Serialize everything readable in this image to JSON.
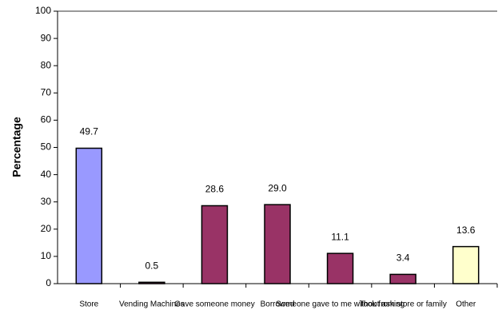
{
  "chart_data": {
    "type": "bar",
    "y_label": "Percentage",
    "categories": [
      "Store",
      "Vending Machines",
      "Gave someone money",
      "Borrowed",
      "Someone gave to me without asking",
      "Took from store or family",
      "Other"
    ],
    "values": [
      49.7,
      0.5,
      28.6,
      29.0,
      11.1,
      3.4,
      13.6
    ],
    "value_labels": [
      "49.7",
      "0.5",
      "28.6",
      "29.0",
      "11.1",
      "3.4",
      "13.6"
    ],
    "colors": [
      "#9999ff",
      "#993366",
      "#993366",
      "#993366",
      "#993366",
      "#993366",
      "#ffffcc"
    ],
    "ylim": [
      0,
      100
    ],
    "yticks": [
      0,
      10,
      20,
      30,
      40,
      50,
      60,
      70,
      80,
      90,
      100
    ],
    "grid": false
  }
}
